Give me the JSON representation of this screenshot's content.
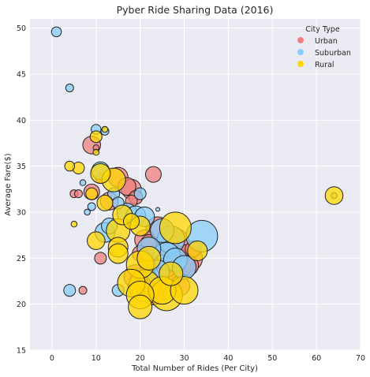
{
  "chart_data": {
    "type": "scatter",
    "title": "Pyber Ride Sharing Data (2016)",
    "xlabel": "Total Number of Rides (Per City)",
    "ylabel": "Average Fare($)",
    "xlim": [
      -5,
      70
    ],
    "ylim": [
      15,
      51
    ],
    "xticks": [
      0,
      10,
      20,
      30,
      40,
      50,
      60,
      70
    ],
    "yticks": [
      15,
      20,
      25,
      30,
      35,
      40,
      45,
      50
    ],
    "grid": true,
    "legend": {
      "title": "City Type",
      "placement": "top-right"
    },
    "colors": {
      "background": "#EAEAF2",
      "Urban": "#F08080",
      "Suburban": "#87CEFA",
      "Rural": "#FFD700"
    },
    "series": [
      {
        "name": "Urban",
        "points": [
          {
            "x": 9,
            "y": 37.3,
            "s": 9
          },
          {
            "x": 10,
            "y": 37.0,
            "s": 3
          },
          {
            "x": 11,
            "y": 33.7,
            "s": 5
          },
          {
            "x": 9,
            "y": 32.2,
            "s": 8
          },
          {
            "x": 5,
            "y": 32.0,
            "s": 4
          },
          {
            "x": 6,
            "y": 32.0,
            "s": 4
          },
          {
            "x": 7,
            "y": 21.5,
            "s": 4
          },
          {
            "x": 11,
            "y": 25.0,
            "s": 6
          },
          {
            "x": 13,
            "y": 31.2,
            "s": 9
          },
          {
            "x": 15,
            "y": 33.8,
            "s": 10
          },
          {
            "x": 18,
            "y": 32.5,
            "s": 10
          },
          {
            "x": 17,
            "y": 32.8,
            "s": 9
          },
          {
            "x": 23,
            "y": 34.1,
            "s": 8
          },
          {
            "x": 19,
            "y": 31.6,
            "s": 7
          },
          {
            "x": 18,
            "y": 31.2,
            "s": 6
          },
          {
            "x": 21,
            "y": 27.0,
            "s": 10
          },
          {
            "x": 22,
            "y": 26.7,
            "s": 8
          },
          {
            "x": 24,
            "y": 28.2,
            "s": 12
          },
          {
            "x": 26,
            "y": 26.5,
            "s": 12
          },
          {
            "x": 28,
            "y": 26.7,
            "s": 14
          },
          {
            "x": 29,
            "y": 24.5,
            "s": 14
          },
          {
            "x": 31,
            "y": 25.0,
            "s": 14
          },
          {
            "x": 31,
            "y": 24.2,
            "s": 10
          },
          {
            "x": 32,
            "y": 26.0,
            "s": 8
          },
          {
            "x": 25,
            "y": 21.5,
            "s": 10
          },
          {
            "x": 21,
            "y": 22.5,
            "s": 14
          },
          {
            "x": 19,
            "y": 23.0,
            "s": 12
          },
          {
            "x": 22,
            "y": 24.5,
            "s": 10
          },
          {
            "x": 27,
            "y": 23.2,
            "s": 12
          },
          {
            "x": 20,
            "y": 25.5,
            "s": 8
          },
          {
            "x": 23,
            "y": 21.0,
            "s": 10
          },
          {
            "x": 26,
            "y": 24.0,
            "s": 10
          },
          {
            "x": 29,
            "y": 22.0,
            "s": 10
          }
        ]
      },
      {
        "name": "Suburban",
        "points": [
          {
            "x": 1,
            "y": 49.6,
            "s": 5
          },
          {
            "x": 4,
            "y": 43.5,
            "s": 4
          },
          {
            "x": 10,
            "y": 39.0,
            "s": 5
          },
          {
            "x": 12,
            "y": 38.8,
            "s": 4
          },
          {
            "x": 7,
            "y": 33.2,
            "s": 3
          },
          {
            "x": 11,
            "y": 34.5,
            "s": 9
          },
          {
            "x": 14,
            "y": 32.0,
            "s": 6
          },
          {
            "x": 20,
            "y": 32.0,
            "s": 6
          },
          {
            "x": 15,
            "y": 31.0,
            "s": 6
          },
          {
            "x": 8,
            "y": 30.0,
            "s": 3
          },
          {
            "x": 9,
            "y": 30.6,
            "s": 4
          },
          {
            "x": 24,
            "y": 30.3,
            "s": 2
          },
          {
            "x": 17,
            "y": 29.9,
            "s": 10
          },
          {
            "x": 19,
            "y": 29.6,
            "s": 10
          },
          {
            "x": 21,
            "y": 29.5,
            "s": 10
          },
          {
            "x": 13,
            "y": 28.5,
            "s": 8
          },
          {
            "x": 12,
            "y": 27.8,
            "s": 10
          },
          {
            "x": 25,
            "y": 28.0,
            "s": 12
          },
          {
            "x": 34,
            "y": 27.4,
            "s": 16
          },
          {
            "x": 27,
            "y": 27.0,
            "s": 14
          },
          {
            "x": 22,
            "y": 26.0,
            "s": 12
          },
          {
            "x": 26,
            "y": 25.2,
            "s": 14
          },
          {
            "x": 28,
            "y": 24.8,
            "s": 12
          },
          {
            "x": 30,
            "y": 24.0,
            "s": 12
          },
          {
            "x": 24,
            "y": 23.5,
            "s": 12
          },
          {
            "x": 15,
            "y": 21.5,
            "s": 6
          },
          {
            "x": 4,
            "y": 21.5,
            "s": 6
          },
          {
            "x": 19,
            "y": 21.8,
            "s": 8
          },
          {
            "x": 64,
            "y": 31.8,
            "s": 3
          }
        ]
      },
      {
        "name": "Rural",
        "points": [
          {
            "x": 10,
            "y": 38.2,
            "s": 6
          },
          {
            "x": 12,
            "y": 39.0,
            "s": 3
          },
          {
            "x": 10,
            "y": 36.5,
            "s": 3
          },
          {
            "x": 4,
            "y": 35.0,
            "s": 5
          },
          {
            "x": 6,
            "y": 34.8,
            "s": 6
          },
          {
            "x": 11,
            "y": 34.2,
            "s": 10
          },
          {
            "x": 14,
            "y": 33.5,
            "s": 12
          },
          {
            "x": 9,
            "y": 32.0,
            "s": 6
          },
          {
            "x": 5,
            "y": 28.7,
            "s": 3
          },
          {
            "x": 12,
            "y": 31.0,
            "s": 8
          },
          {
            "x": 16,
            "y": 29.7,
            "s": 10
          },
          {
            "x": 18,
            "y": 29.0,
            "s": 8
          },
          {
            "x": 15,
            "y": 28.0,
            "s": 12
          },
          {
            "x": 20,
            "y": 28.5,
            "s": 10
          },
          {
            "x": 28,
            "y": 28.3,
            "s": 16
          },
          {
            "x": 10,
            "y": 26.9,
            "s": 9
          },
          {
            "x": 15,
            "y": 26.2,
            "s": 10
          },
          {
            "x": 15,
            "y": 25.5,
            "s": 10
          },
          {
            "x": 33,
            "y": 25.8,
            "s": 10
          },
          {
            "x": 20,
            "y": 24.3,
            "s": 14
          },
          {
            "x": 27,
            "y": 23.3,
            "s": 12
          },
          {
            "x": 18,
            "y": 22.3,
            "s": 14
          },
          {
            "x": 21,
            "y": 22.0,
            "s": 16
          },
          {
            "x": 25,
            "y": 21.5,
            "s": 14
          },
          {
            "x": 30,
            "y": 21.5,
            "s": 14
          },
          {
            "x": 20,
            "y": 21.0,
            "s": 14
          },
          {
            "x": 26,
            "y": 21.0,
            "s": 16
          },
          {
            "x": 20,
            "y": 19.7,
            "s": 12
          },
          {
            "x": 64,
            "y": 31.8,
            "s": 9
          },
          {
            "x": 22,
            "y": 25.0,
            "s": 12
          }
        ]
      }
    ]
  }
}
